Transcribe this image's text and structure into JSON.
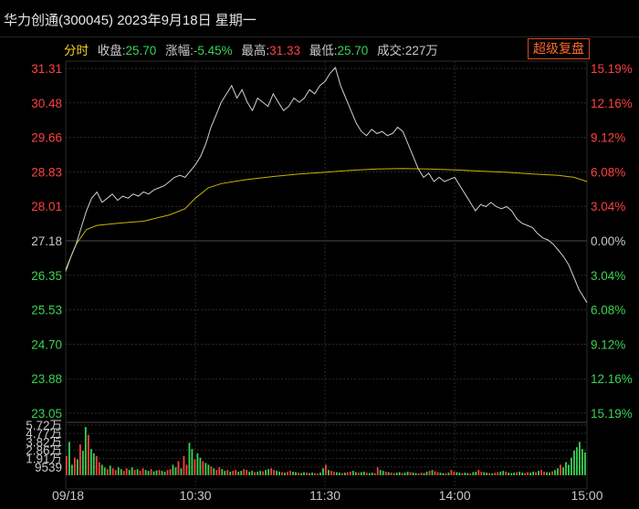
{
  "header": {
    "title": "华力创通(300045) 2023年9月18日 星期一"
  },
  "info_bar": {
    "mode_label": "分时",
    "close_label": "收盘:",
    "close_value": "25.70",
    "change_label": "涨幅:",
    "change_value": "-5.45%",
    "high_label": "最高:",
    "high_value": "31.33",
    "low_label": "最低:",
    "low_value": "25.70",
    "volume_label": "成交:",
    "volume_value": "227万",
    "super_button_label": "超级复盘"
  },
  "colors": {
    "background": "#000000",
    "grid": "#2b2b2b",
    "up": "#ff4040",
    "down": "#39d353",
    "neutral": "#c8c8c8",
    "price_line": "#d0d0d0",
    "avg_line": "#c8b400",
    "accent": "#ff6a2a"
  },
  "chart_data": [
    {
      "type": "line",
      "title": "",
      "prev_close": 27.18,
      "ylim": [
        23.05,
        31.31
      ],
      "y_ticks_left": [
        "31.31",
        "30.48",
        "29.66",
        "28.83",
        "28.01",
        "27.18",
        "26.35",
        "25.53",
        "24.70",
        "23.88",
        "23.05"
      ],
      "y_ticks_right": [
        "15.19%",
        "12.16%",
        "9.12%",
        "6.08%",
        "3.04%",
        "0.00%",
        "3.04%",
        "6.08%",
        "9.12%",
        "12.16%",
        "15.19%"
      ],
      "x_ticks": [
        "09/18",
        "10:30",
        "11:30",
        "14:00",
        "15:00"
      ],
      "series": [
        {
          "name": "",
          "points": [
            [
              0,
              26.45
            ],
            [
              2,
              26.8
            ],
            [
              4,
              27.1
            ],
            [
              6,
              27.5
            ],
            [
              8,
              27.9
            ],
            [
              10,
              28.2
            ],
            [
              12,
              28.35
            ],
            [
              14,
              28.1
            ],
            [
              16,
              28.2
            ],
            [
              18,
              28.3
            ],
            [
              20,
              28.15
            ],
            [
              22,
              28.25
            ],
            [
              24,
              28.2
            ],
            [
              26,
              28.3
            ],
            [
              28,
              28.25
            ],
            [
              30,
              28.35
            ],
            [
              32,
              28.3
            ],
            [
              34,
              28.4
            ],
            [
              36,
              28.45
            ],
            [
              38,
              28.5
            ],
            [
              40,
              28.6
            ],
            [
              42,
              28.7
            ],
            [
              44,
              28.75
            ],
            [
              46,
              28.7
            ],
            [
              48,
              28.85
            ],
            [
              50,
              29.0
            ],
            [
              52,
              29.2
            ],
            [
              54,
              29.5
            ],
            [
              56,
              29.9
            ],
            [
              58,
              30.2
            ],
            [
              60,
              30.5
            ],
            [
              62,
              30.7
            ],
            [
              64,
              30.9
            ],
            [
              66,
              30.6
            ],
            [
              68,
              30.8
            ],
            [
              70,
              30.5
            ],
            [
              72,
              30.3
            ],
            [
              74,
              30.6
            ],
            [
              76,
              30.5
            ],
            [
              78,
              30.4
            ],
            [
              80,
              30.7
            ],
            [
              82,
              30.5
            ],
            [
              84,
              30.3
            ],
            [
              86,
              30.4
            ],
            [
              88,
              30.6
            ],
            [
              90,
              30.5
            ],
            [
              92,
              30.6
            ],
            [
              94,
              30.8
            ],
            [
              96,
              30.7
            ],
            [
              98,
              30.9
            ],
            [
              100,
              31.0
            ],
            [
              102,
              31.2
            ],
            [
              104,
              31.33
            ],
            [
              106,
              30.9
            ],
            [
              108,
              30.6
            ],
            [
              110,
              30.3
            ],
            [
              112,
              30.0
            ],
            [
              114,
              29.8
            ],
            [
              116,
              29.7
            ],
            [
              118,
              29.85
            ],
            [
              120,
              29.75
            ],
            [
              122,
              29.8
            ],
            [
              124,
              29.7
            ],
            [
              126,
              29.75
            ],
            [
              128,
              29.9
            ],
            [
              130,
              29.8
            ],
            [
              132,
              29.5
            ],
            [
              134,
              29.2
            ],
            [
              136,
              28.9
            ],
            [
              138,
              28.7
            ],
            [
              140,
              28.8
            ],
            [
              142,
              28.6
            ],
            [
              144,
              28.7
            ],
            [
              146,
              28.6
            ],
            [
              148,
              28.65
            ],
            [
              150,
              28.7
            ],
            [
              152,
              28.5
            ],
            [
              154,
              28.3
            ],
            [
              156,
              28.1
            ],
            [
              158,
              27.9
            ],
            [
              160,
              28.05
            ],
            [
              162,
              28.0
            ],
            [
              164,
              28.1
            ],
            [
              166,
              28.0
            ],
            [
              168,
              27.95
            ],
            [
              170,
              28.0
            ],
            [
              172,
              27.9
            ],
            [
              174,
              27.7
            ],
            [
              176,
              27.6
            ],
            [
              178,
              27.55
            ],
            [
              180,
              27.5
            ],
            [
              182,
              27.35
            ],
            [
              184,
              27.25
            ],
            [
              186,
              27.2
            ],
            [
              188,
              27.1
            ],
            [
              190,
              26.95
            ],
            [
              192,
              26.8
            ],
            [
              194,
              26.6
            ],
            [
              196,
              26.3
            ],
            [
              198,
              26.0
            ],
            [
              200,
              25.8
            ],
            [
              201,
              25.7
            ]
          ]
        },
        {
          "name": "",
          "points": [
            [
              0,
              26.5
            ],
            [
              4,
              27.1
            ],
            [
              8,
              27.45
            ],
            [
              12,
              27.55
            ],
            [
              20,
              27.6
            ],
            [
              30,
              27.65
            ],
            [
              40,
              27.8
            ],
            [
              46,
              27.95
            ],
            [
              50,
              28.2
            ],
            [
              55,
              28.45
            ],
            [
              60,
              28.55
            ],
            [
              70,
              28.65
            ],
            [
              80,
              28.72
            ],
            [
              90,
              28.78
            ],
            [
              100,
              28.82
            ],
            [
              110,
              28.87
            ],
            [
              120,
              28.9
            ],
            [
              130,
              28.91
            ],
            [
              140,
              28.9
            ],
            [
              150,
              28.88
            ],
            [
              160,
              28.85
            ],
            [
              170,
              28.82
            ],
            [
              180,
              28.78
            ],
            [
              190,
              28.75
            ],
            [
              196,
              28.7
            ],
            [
              201,
              28.6
            ]
          ]
        }
      ]
    },
    {
      "type": "bar",
      "title": "",
      "ylim": [
        0,
        57200
      ],
      "y_ticks": [
        "5.72万",
        "4.77万",
        "3.82万",
        "2.86万",
        "1.91万",
        "9539"
      ],
      "x_ticks": [
        "09/18",
        "10:30",
        "11:30",
        "14:00",
        "15:00"
      ],
      "series": [
        {
          "name": "",
          "values": [
            22000,
            38000,
            12000,
            20000,
            18000,
            35000,
            28000,
            55000,
            46000,
            30000,
            25000,
            22000,
            15000,
            12000,
            9000,
            7000,
            11000,
            8000,
            6000,
            9000,
            7000,
            5000,
            8000,
            6000,
            9000,
            6000,
            7000,
            5000,
            8000,
            6000,
            5000,
            7000,
            4500,
            5500,
            6000,
            5000,
            4000,
            6000,
            7000,
            12000,
            9000,
            16000,
            8000,
            22000,
            12000,
            37000,
            30000,
            18000,
            25000,
            20000,
            16000,
            14000,
            12000,
            10000,
            8000,
            6000,
            9000,
            7000,
            5000,
            6000,
            4000,
            5000,
            6000,
            4000,
            5000,
            7000,
            6000,
            4000,
            5000,
            3500,
            4000,
            5000,
            4500,
            6000,
            7000,
            8000,
            6000,
            5000,
            4000,
            3500,
            3000,
            4000,
            5000,
            4000,
            3500,
            3000,
            2500,
            3500,
            3000,
            2500,
            3000,
            2500,
            2000,
            3000,
            8000,
            12000,
            6000,
            5000,
            4000,
            3500,
            3000,
            2500,
            3000,
            3500,
            4000,
            5000,
            3500,
            3000,
            3500,
            4000,
            3000,
            2500,
            3000,
            2500,
            9000,
            6000,
            5000,
            4000,
            3500,
            3000,
            2500,
            3000,
            3500,
            2500,
            3000,
            4000,
            3500,
            3000,
            2500,
            2000,
            3000,
            2500,
            4000,
            5000,
            6000,
            4500,
            3500,
            3000,
            2500,
            2000,
            3000,
            6000,
            4000,
            3500,
            3000,
            2500,
            3000,
            2500,
            2000,
            3500,
            4000,
            6000,
            4000,
            3500,
            3000,
            2500,
            2000,
            3000,
            3500,
            4000,
            5000,
            4000,
            3000,
            2500,
            3000,
            3500,
            4000,
            3000,
            2500,
            3500,
            3000,
            4000,
            3500,
            5000,
            6000,
            4000,
            3500,
            3000,
            4500,
            6000,
            8000,
            12000,
            9000,
            15000,
            12000,
            20000,
            28000,
            32000,
            38000,
            30000,
            26000
          ],
          "directions": "uddududdudduudduduudduudduduudduddudduudduduudduddudduduudduduudduudduddudduudduduudduddudduudduduudduduudduddudduudduduudduddudduudduduudduduudduddudduudduduuddudddudduudduduudduddudddd"
        }
      ]
    }
  ]
}
